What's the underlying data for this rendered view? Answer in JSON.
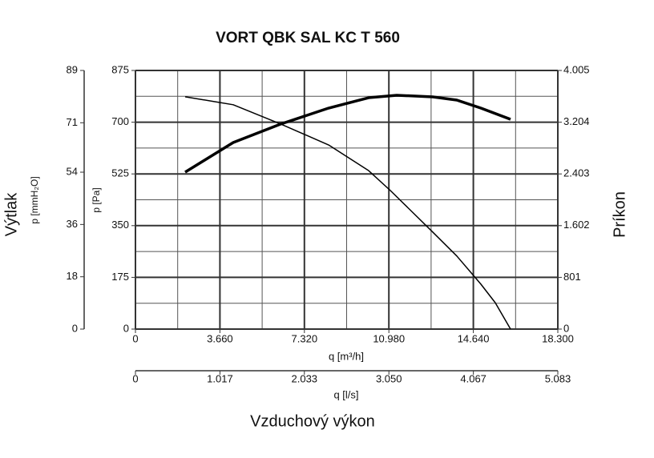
{
  "chart_data": {
    "type": "line",
    "title": "VORT QBK SAL KC T 560",
    "x_label": "q [m³/h]",
    "x2_label": "q [l/s]",
    "bottom_label": "Vzduchový výkon",
    "y_label": "p [Pa]",
    "y3_label": "p [mmH₂O]",
    "y3_title": "Výtlak",
    "y2_label": "Príkon",
    "xlim": [
      0,
      18300
    ],
    "xticks": [
      0,
      {
        "value": 3660,
        "label": "3.660"
      },
      {
        "value": 7320,
        "label": "7.320"
      },
      {
        "value": 10980,
        "label": "10.980"
      },
      {
        "value": 14640,
        "label": "14.640"
      },
      {
        "value": 18300,
        "label": "18.300"
      }
    ],
    "x2lim": [
      0,
      5083
    ],
    "x2ticks": [
      0,
      {
        "value": 1017,
        "label": "1.017"
      },
      {
        "value": 2033,
        "label": "2.033"
      },
      {
        "value": 3050,
        "label": "3.050"
      },
      {
        "value": 4067,
        "label": "4.067"
      },
      {
        "value": 5083,
        "label": "5.083"
      }
    ],
    "ylim": [
      0,
      875
    ],
    "yticks": [
      0,
      175,
      350,
      525,
      700,
      875
    ],
    "y3lim": [
      0,
      89
    ],
    "y3ticks": [
      0,
      18,
      36,
      54,
      71,
      89
    ],
    "y2lim": [
      0,
      4005
    ],
    "y2ticks": [
      0,
      801,
      {
        "value": 1602,
        "label": "1.602"
      },
      {
        "value": 2403,
        "label": "2.403"
      },
      {
        "value": 3204,
        "label": "3.204"
      },
      {
        "value": 4005,
        "label": "4.005"
      }
    ],
    "grid": true,
    "series": [
      {
        "color": "#000000",
        "width": 1.5,
        "x": [
          2153,
          4236,
          6285,
          8369,
          10105,
          11042,
          12883,
          13925,
          14966,
          15591,
          16251
        ],
        "values": [
          786,
          759,
          694,
          623,
          536,
          469,
          328,
          247,
          152,
          89,
          0
        ]
      },
      {
        "color": "#000000",
        "width": 3.5,
        "axis": "y2",
        "x": [
          2153,
          4236,
          6285,
          8369,
          10105,
          11320,
          12883,
          13925,
          14966,
          16251
        ],
        "values": [
          2430,
          2889,
          3174,
          3422,
          3583,
          3621,
          3596,
          3546,
          3422,
          3249
        ]
      }
    ]
  }
}
